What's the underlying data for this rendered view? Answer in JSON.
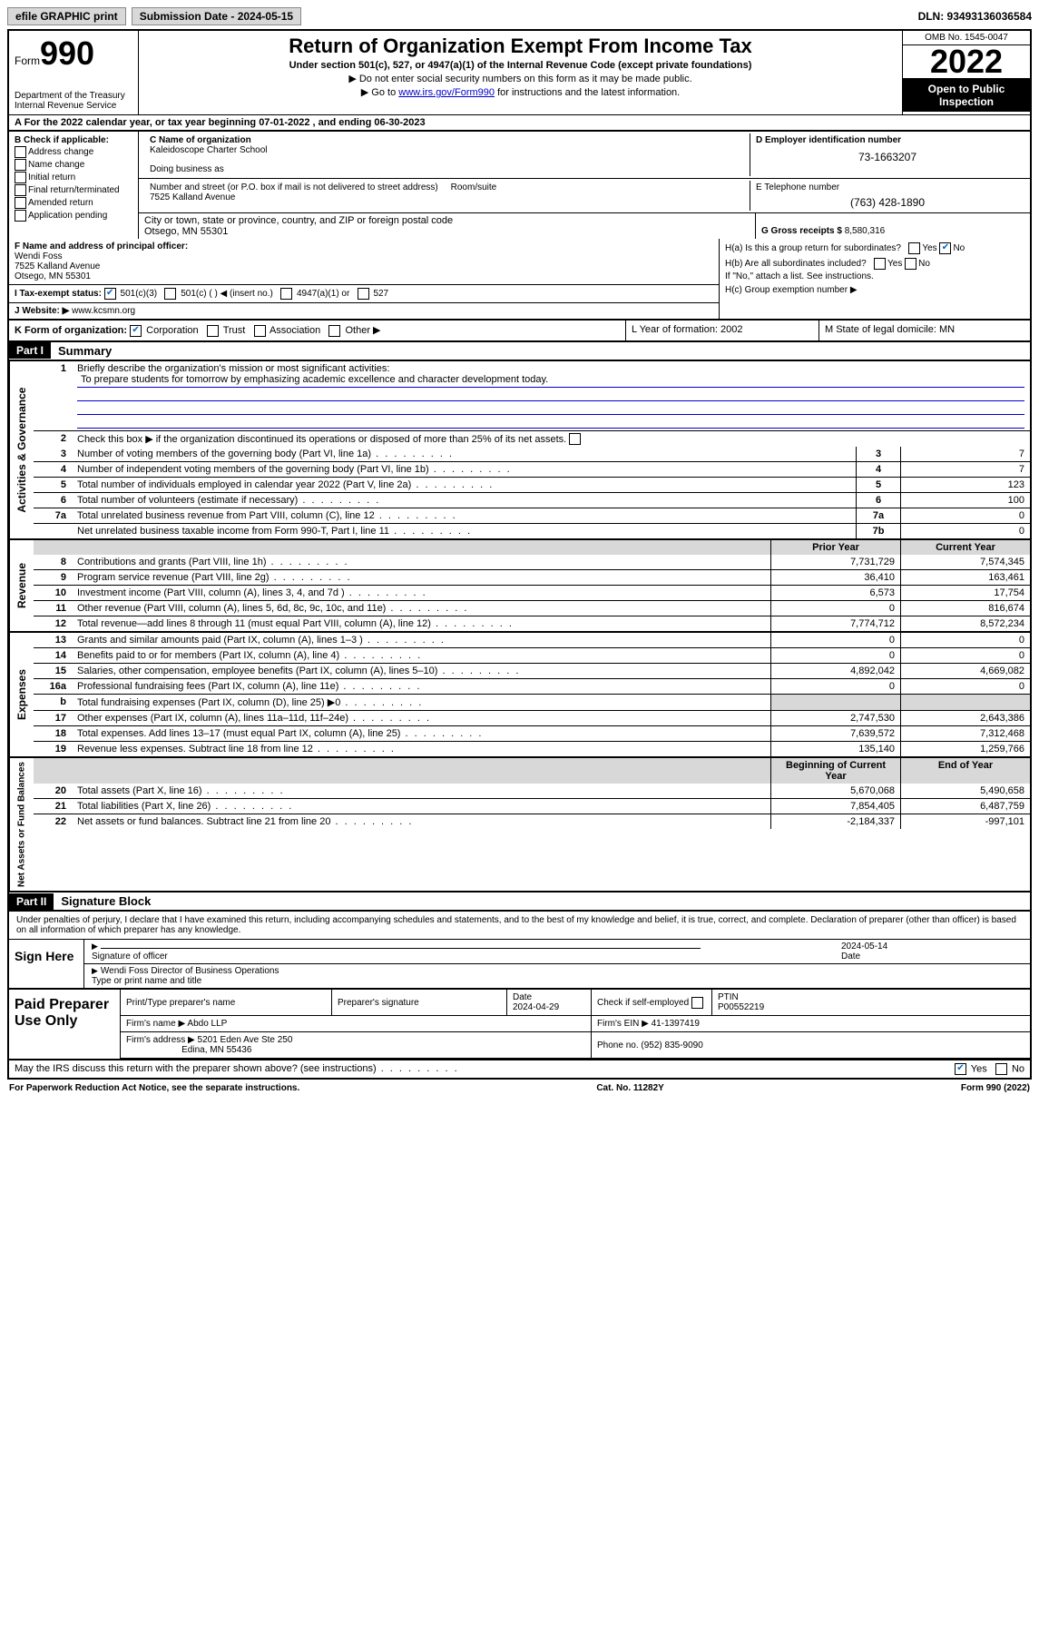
{
  "topbar": {
    "efile": "efile GRAPHIC print",
    "submission_label": "Submission Date - 2024-05-15",
    "dln": "DLN: 93493136036584"
  },
  "header": {
    "form_label": "Form",
    "form_number": "990",
    "dept": "Department of the Treasury",
    "irs": "Internal Revenue Service",
    "title": "Return of Organization Exempt From Income Tax",
    "subtitle": "Under section 501(c), 527, or 4947(a)(1) of the Internal Revenue Code (except private foundations)",
    "note1": "▶ Do not enter social security numbers on this form as it may be made public.",
    "note2_pre": "▶ Go to ",
    "note2_link": "www.irs.gov/Form990",
    "note2_post": " for instructions and the latest information.",
    "omb": "OMB No. 1545-0047",
    "year": "2022",
    "open_public": "Open to Public Inspection"
  },
  "A": {
    "text": "A For the 2022 calendar year, or tax year beginning 07-01-2022    , and ending 06-30-2023"
  },
  "B": {
    "heading": "B Check if applicable:",
    "items": [
      "Address change",
      "Name change",
      "Initial return",
      "Final return/terminated",
      "Amended return",
      "Application pending"
    ]
  },
  "C": {
    "label": "C Name of organization",
    "name": "Kaleidoscope Charter School",
    "dba_label": "Doing business as",
    "addr_label": "Number and street (or P.O. box if mail is not delivered to street address)",
    "room_label": "Room/suite",
    "addr": "7525 Kalland Avenue",
    "city_label": "City or town, state or province, country, and ZIP or foreign postal code",
    "city": "Otsego, MN  55301"
  },
  "D": {
    "label": "D Employer identification number",
    "value": "73-1663207"
  },
  "E": {
    "label": "E Telephone number",
    "value": "(763) 428-1890"
  },
  "G": {
    "label": "G Gross receipts $",
    "value": "8,580,316"
  },
  "F": {
    "label": "F Name and address of principal officer:",
    "name": "Wendi Foss",
    "addr1": "7525 Kalland Avenue",
    "addr2": "Otsego, MN  55301"
  },
  "H": {
    "a": "H(a)  Is this a group return for subordinates?",
    "b": "H(b)  Are all subordinates included?",
    "b_note": "If \"No,\" attach a list. See instructions.",
    "c": "H(c)  Group exemption number ▶",
    "yes": "Yes",
    "no": "No"
  },
  "I": {
    "label": "I    Tax-exempt status:",
    "opts": [
      "501(c)(3)",
      "501(c) (  ) ◀ (insert no.)",
      "4947(a)(1) or",
      "527"
    ]
  },
  "J": {
    "label": "J   Website: ▶",
    "value": "www.kcsmn.org"
  },
  "K": {
    "label": "K Form of organization:",
    "opts": [
      "Corporation",
      "Trust",
      "Association",
      "Other ▶"
    ],
    "L": "L Year of formation: 2002",
    "M": "M State of legal domicile: MN"
  },
  "partI": {
    "header": "Part I",
    "title": "Summary",
    "line1_label": "Briefly describe the organization's mission or most significant activities:",
    "line1_text": "To prepare students for tomorrow by emphasizing academic excellence and character development today.",
    "line2": "Check this box ▶        if the organization discontinued its operations or disposed of more than 25% of its net assets.",
    "sections": {
      "governance": "Activities & Governance",
      "revenue": "Revenue",
      "expenses": "Expenses",
      "netassets": "Net Assets or Fund Balances"
    },
    "gov_lines": [
      {
        "n": "3",
        "t": "Number of voting members of the governing body (Part VI, line 1a)",
        "box": "3",
        "v": "7"
      },
      {
        "n": "4",
        "t": "Number of independent voting members of the governing body (Part VI, line 1b)",
        "box": "4",
        "v": "7"
      },
      {
        "n": "5",
        "t": "Total number of individuals employed in calendar year 2022 (Part V, line 2a)",
        "box": "5",
        "v": "123"
      },
      {
        "n": "6",
        "t": "Total number of volunteers (estimate if necessary)",
        "box": "6",
        "v": "100"
      },
      {
        "n": "7a",
        "t": "Total unrelated business revenue from Part VIII, column (C), line 12",
        "box": "7a",
        "v": "0"
      },
      {
        "n": "",
        "t": "Net unrelated business taxable income from Form 990-T, Part I, line 11",
        "box": "7b",
        "v": "0"
      }
    ],
    "col_headers": {
      "prior": "Prior Year",
      "current": "Current Year",
      "boy": "Beginning of Current Year",
      "eoy": "End of Year"
    },
    "rev_lines": [
      {
        "n": "8",
        "t": "Contributions and grants (Part VIII, line 1h)",
        "p": "7,731,729",
        "c": "7,574,345"
      },
      {
        "n": "9",
        "t": "Program service revenue (Part VIII, line 2g)",
        "p": "36,410",
        "c": "163,461"
      },
      {
        "n": "10",
        "t": "Investment income (Part VIII, column (A), lines 3, 4, and 7d )",
        "p": "6,573",
        "c": "17,754"
      },
      {
        "n": "11",
        "t": "Other revenue (Part VIII, column (A), lines 5, 6d, 8c, 9c, 10c, and 11e)",
        "p": "0",
        "c": "816,674"
      },
      {
        "n": "12",
        "t": "Total revenue—add lines 8 through 11 (must equal Part VIII, column (A), line 12)",
        "p": "7,774,712",
        "c": "8,572,234"
      }
    ],
    "exp_lines": [
      {
        "n": "13",
        "t": "Grants and similar amounts paid (Part IX, column (A), lines 1–3 )",
        "p": "0",
        "c": "0"
      },
      {
        "n": "14",
        "t": "Benefits paid to or for members (Part IX, column (A), line 4)",
        "p": "0",
        "c": "0"
      },
      {
        "n": "15",
        "t": "Salaries, other compensation, employee benefits (Part IX, column (A), lines 5–10)",
        "p": "4,892,042",
        "c": "4,669,082"
      },
      {
        "n": "16a",
        "t": "Professional fundraising fees (Part IX, column (A), line 11e)",
        "p": "0",
        "c": "0"
      },
      {
        "n": "b",
        "t": "Total fundraising expenses (Part IX, column (D), line 25) ▶0",
        "p": "",
        "c": "",
        "shade": true
      },
      {
        "n": "17",
        "t": "Other expenses (Part IX, column (A), lines 11a–11d, 11f–24e)",
        "p": "2,747,530",
        "c": "2,643,386"
      },
      {
        "n": "18",
        "t": "Total expenses. Add lines 13–17 (must equal Part IX, column (A), line 25)",
        "p": "7,639,572",
        "c": "7,312,468"
      },
      {
        "n": "19",
        "t": "Revenue less expenses. Subtract line 18 from line 12",
        "p": "135,140",
        "c": "1,259,766"
      }
    ],
    "net_lines": [
      {
        "n": "20",
        "t": "Total assets (Part X, line 16)",
        "p": "5,670,068",
        "c": "5,490,658"
      },
      {
        "n": "21",
        "t": "Total liabilities (Part X, line 26)",
        "p": "7,854,405",
        "c": "6,487,759"
      },
      {
        "n": "22",
        "t": "Net assets or fund balances. Subtract line 21 from line 20",
        "p": "-2,184,337",
        "c": "-997,101"
      }
    ]
  },
  "partII": {
    "header": "Part II",
    "title": "Signature Block",
    "declaration": "Under penalties of perjury, I declare that I have examined this return, including accompanying schedules and statements, and to the best of my knowledge and belief, it is true, correct, and complete. Declaration of preparer (other than officer) is based on all information of which preparer has any knowledge.",
    "sign_here": "Sign Here",
    "sig_officer": "Signature of officer",
    "sig_date": "2024-05-14",
    "date_label": "Date",
    "officer_name": "Wendi Foss  Director of Business Operations",
    "type_name": "Type or print name and title",
    "paid_prep": "Paid Preparer Use Only",
    "prep_name_label": "Print/Type preparer's name",
    "prep_sig_label": "Preparer's signature",
    "prep_date_label": "Date",
    "prep_date": "2024-04-29",
    "check_if": "Check        if self-employed",
    "ptin_label": "PTIN",
    "ptin": "P00552219",
    "firm_name_label": "Firm's name     ▶",
    "firm_name": "Abdo LLP",
    "firm_ein_label": "Firm's EIN ▶",
    "firm_ein": "41-1397419",
    "firm_addr_label": "Firm's address ▶",
    "firm_addr1": "5201 Eden Ave Ste 250",
    "firm_addr2": "Edina, MN  55436",
    "phone_label": "Phone no.",
    "phone": "(952) 835-9090",
    "may_irs": "May the IRS discuss this return with the preparer shown above? (see instructions)"
  },
  "footer": {
    "pra": "For Paperwork Reduction Act Notice, see the separate instructions.",
    "cat": "Cat. No. 11282Y",
    "form": "Form 990 (2022)"
  }
}
